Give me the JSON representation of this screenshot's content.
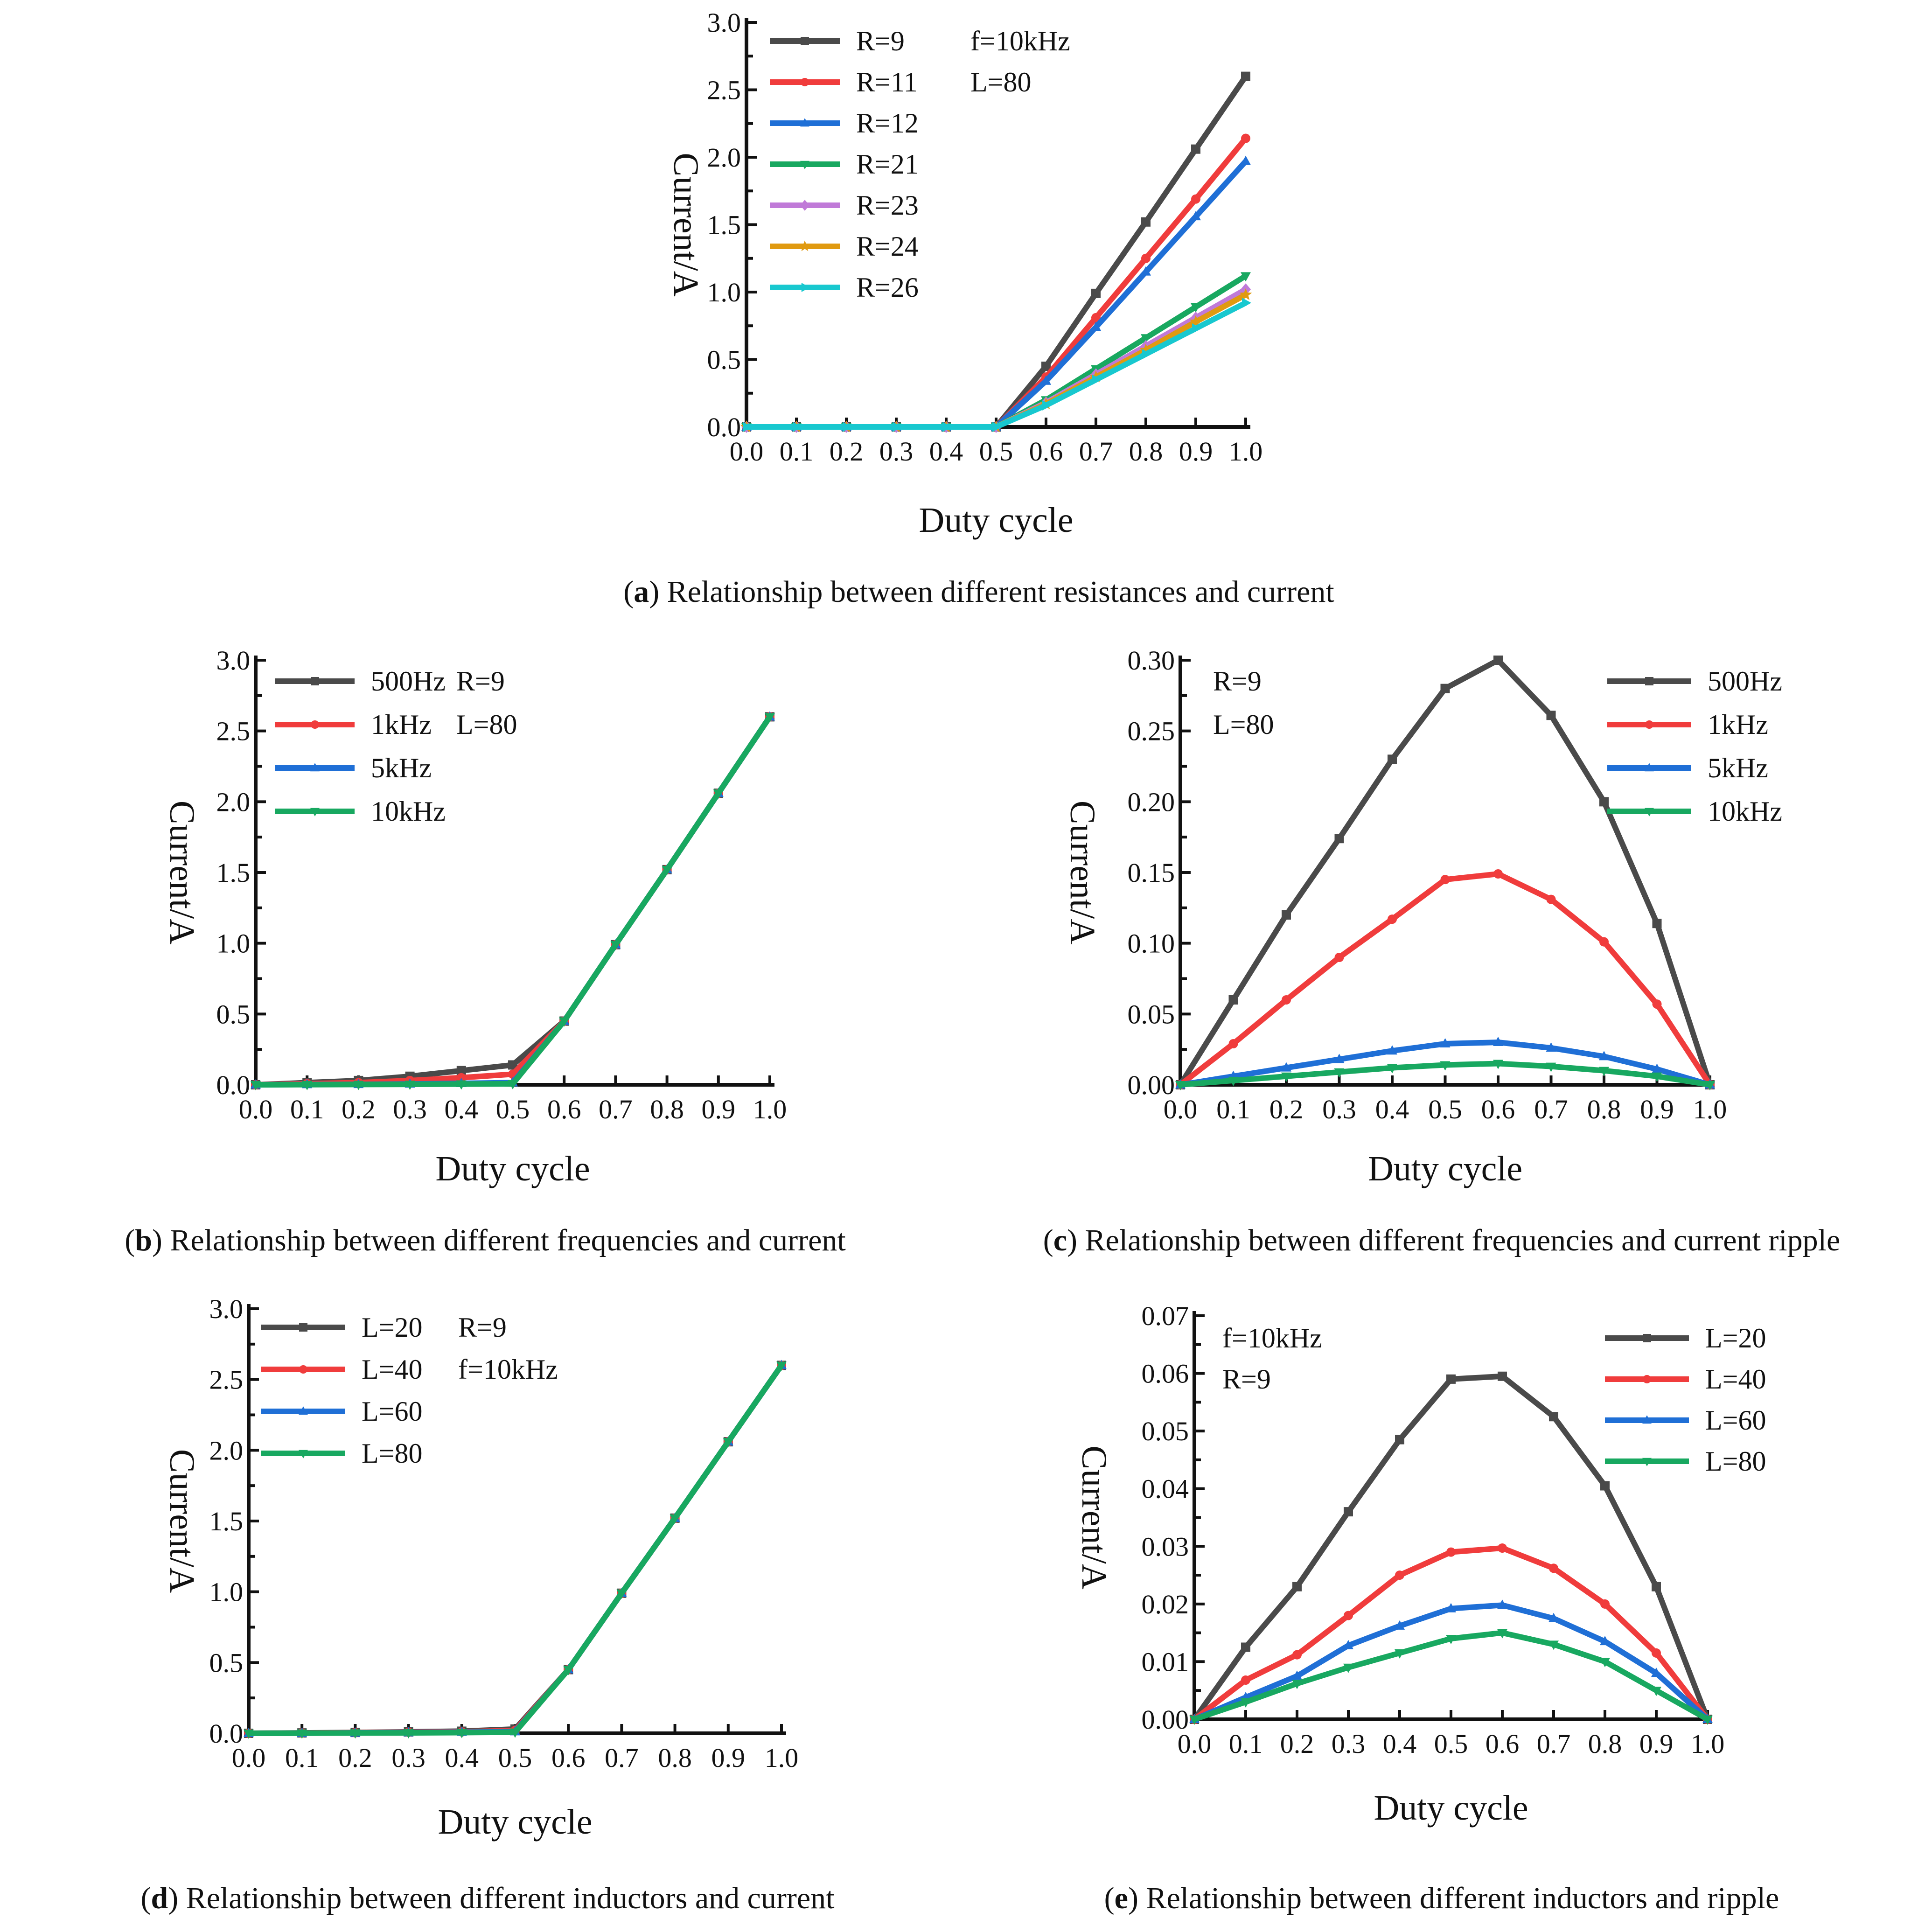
{
  "chart_data": [
    {
      "id": "a",
      "type": "line",
      "title": "",
      "xlabel": "Duty cycle",
      "ylabel": "Current/A",
      "xlim": [
        0,
        1.0
      ],
      "ylim": [
        0,
        3.0
      ],
      "x_ticks": [
        "0.0",
        "0.1",
        "0.2",
        "0.3",
        "0.4",
        "0.5",
        "0.6",
        "0.7",
        "0.8",
        "0.9",
        "1.0"
      ],
      "y_ticks": [
        "0.0",
        "0.5",
        "1.0",
        "1.5",
        "2.0",
        "2.5",
        "3.0"
      ],
      "x": [
        0,
        0.1,
        0.2,
        0.3,
        0.4,
        0.5,
        0.6,
        0.7,
        0.8,
        0.9,
        1.0
      ],
      "legend": "top-left",
      "notes": [
        "f=10kHz",
        "L=80"
      ],
      "caption_label": "a",
      "caption_text": "Relationship between different resistances and current",
      "series": [
        {
          "name": "R=9",
          "color": "#4a4a4a",
          "marker": "square",
          "values": [
            0,
            0,
            0,
            0,
            0,
            0,
            0.45,
            0.99,
            1.52,
            2.06,
            2.6
          ]
        },
        {
          "name": "R=11",
          "color": "#f03c3c",
          "marker": "circle",
          "values": [
            0,
            0,
            0,
            0,
            0,
            0,
            0.37,
            0.81,
            1.25,
            1.69,
            2.14
          ]
        },
        {
          "name": "R=12",
          "color": "#1f6fd6",
          "marker": "triangle",
          "values": [
            0,
            0,
            0,
            0,
            0,
            0,
            0.34,
            0.74,
            1.15,
            1.56,
            1.97
          ]
        },
        {
          "name": "R=21",
          "color": "#18a860",
          "marker": "tri-down",
          "values": [
            0,
            0,
            0,
            0,
            0,
            0,
            0.2,
            0.43,
            0.66,
            0.89,
            1.12
          ]
        },
        {
          "name": "R=23",
          "color": "#c07ad8",
          "marker": "diamond",
          "values": [
            0,
            0,
            0,
            0,
            0,
            0,
            0.18,
            0.39,
            0.6,
            0.81,
            1.02
          ]
        },
        {
          "name": "R=24",
          "color": "#e09a10",
          "marker": "star",
          "values": [
            0,
            0,
            0,
            0,
            0,
            0,
            0.17,
            0.37,
            0.57,
            0.78,
            0.98
          ]
        },
        {
          "name": "R=26",
          "color": "#18c8cf",
          "marker": "tri-right",
          "values": [
            0,
            0,
            0,
            0,
            0,
            0,
            0.16,
            0.35,
            0.54,
            0.73,
            0.92
          ]
        }
      ]
    },
    {
      "id": "b",
      "type": "line",
      "title": "",
      "xlabel": "Duty cycle",
      "ylabel": "Current/A",
      "xlim": [
        0,
        1.0
      ],
      "ylim": [
        0,
        3.0
      ],
      "x_ticks": [
        "0.0",
        "0.1",
        "0.2",
        "0.3",
        "0.4",
        "0.5",
        "0.6",
        "0.7",
        "0.8",
        "0.9",
        "1.0"
      ],
      "y_ticks": [
        "0.0",
        "0.5",
        "1.0",
        "1.5",
        "2.0",
        "2.5",
        "3.0"
      ],
      "x": [
        0,
        0.1,
        0.2,
        0.3,
        0.4,
        0.5,
        0.6,
        0.7,
        0.8,
        0.9,
        1.0
      ],
      "legend": "top-left",
      "notes": [
        "R=9",
        "L=80"
      ],
      "caption_label": "b",
      "caption_text": "Relationship between different frequencies and current",
      "series": [
        {
          "name": "500Hz",
          "color": "#4a4a4a",
          "marker": "square",
          "values": [
            0,
            0.015,
            0.03,
            0.06,
            0.1,
            0.14,
            0.45,
            0.99,
            1.52,
            2.06,
            2.6
          ]
        },
        {
          "name": "1kHz",
          "color": "#f03c3c",
          "marker": "circle",
          "values": [
            0,
            0.008,
            0.015,
            0.03,
            0.05,
            0.075,
            0.45,
            0.99,
            1.52,
            2.06,
            2.6
          ]
        },
        {
          "name": "5kHz",
          "color": "#1f6fd6",
          "marker": "triangle",
          "values": [
            0,
            0.002,
            0.003,
            0.006,
            0.01,
            0.015,
            0.45,
            0.99,
            1.52,
            2.06,
            2.6
          ]
        },
        {
          "name": "10kHz",
          "color": "#18a860",
          "marker": "tri-down",
          "values": [
            0,
            0.001,
            0.002,
            0.003,
            0.005,
            0.007,
            0.45,
            0.99,
            1.52,
            2.06,
            2.6
          ]
        }
      ]
    },
    {
      "id": "c",
      "type": "line",
      "title": "",
      "xlabel": "Duty cycle",
      "ylabel": "Current/A",
      "xlim": [
        0,
        1.0
      ],
      "ylim": [
        0,
        0.3
      ],
      "x_ticks": [
        "0.0",
        "0.1",
        "0.2",
        "0.3",
        "0.4",
        "0.5",
        "0.6",
        "0.7",
        "0.8",
        "0.9",
        "1.0"
      ],
      "y_ticks": [
        "0.00",
        "0.05",
        "0.10",
        "0.15",
        "0.20",
        "0.25",
        "0.30"
      ],
      "x": [
        0,
        0.1,
        0.2,
        0.3,
        0.4,
        0.5,
        0.6,
        0.7,
        0.8,
        0.9,
        1.0
      ],
      "legend": "top-right",
      "notes": [
        "R=9",
        "L=80"
      ],
      "caption_label": "c",
      "caption_text": "Relationship between different frequencies and current ripple",
      "series": [
        {
          "name": "500Hz",
          "color": "#4a4a4a",
          "marker": "square",
          "values": [
            0,
            0.06,
            0.12,
            0.174,
            0.23,
            0.28,
            0.3,
            0.261,
            0.2,
            0.114,
            0
          ]
        },
        {
          "name": "1kHz",
          "color": "#f03c3c",
          "marker": "circle",
          "values": [
            0,
            0.029,
            0.06,
            0.09,
            0.117,
            0.145,
            0.149,
            0.131,
            0.101,
            0.057,
            0
          ]
        },
        {
          "name": "5kHz",
          "color": "#1f6fd6",
          "marker": "triangle",
          "values": [
            0,
            0.006,
            0.012,
            0.018,
            0.024,
            0.029,
            0.03,
            0.026,
            0.02,
            0.011,
            0
          ]
        },
        {
          "name": "10kHz",
          "color": "#18a860",
          "marker": "tri-down",
          "values": [
            0,
            0.003,
            0.006,
            0.009,
            0.012,
            0.014,
            0.015,
            0.013,
            0.01,
            0.006,
            0
          ]
        }
      ]
    },
    {
      "id": "d",
      "type": "line",
      "title": "",
      "xlabel": "Duty cycle",
      "ylabel": "Current/A",
      "xlim": [
        0,
        1.0
      ],
      "ylim": [
        0,
        3.0
      ],
      "x_ticks": [
        "0.0",
        "0.1",
        "0.2",
        "0.3",
        "0.4",
        "0.5",
        "0.6",
        "0.7",
        "0.8",
        "0.9",
        "1.0"
      ],
      "y_ticks": [
        "0.0",
        "0.5",
        "1.0",
        "1.5",
        "2.0",
        "2.5",
        "3.0"
      ],
      "x": [
        0,
        0.1,
        0.2,
        0.3,
        0.4,
        0.5,
        0.6,
        0.7,
        0.8,
        0.9,
        1.0
      ],
      "legend": "top-left",
      "notes": [
        "R=9",
        "f=10kHz"
      ],
      "caption_label": "d",
      "caption_text": "Relationship between different inductors and current",
      "series": [
        {
          "name": "L=20",
          "color": "#4a4a4a",
          "marker": "square",
          "values": [
            0,
            0.003,
            0.006,
            0.01,
            0.015,
            0.03,
            0.45,
            0.99,
            1.52,
            2.06,
            2.6
          ]
        },
        {
          "name": "L=40",
          "color": "#f03c3c",
          "marker": "circle",
          "values": [
            0,
            0.002,
            0.004,
            0.007,
            0.01,
            0.02,
            0.45,
            0.99,
            1.52,
            2.06,
            2.6
          ]
        },
        {
          "name": "L=60",
          "color": "#1f6fd6",
          "marker": "triangle",
          "values": [
            0,
            0.001,
            0.003,
            0.005,
            0.008,
            0.012,
            0.45,
            0.99,
            1.52,
            2.06,
            2.6
          ]
        },
        {
          "name": "L=80",
          "color": "#18a860",
          "marker": "tri-down",
          "values": [
            0,
            0.001,
            0.002,
            0.003,
            0.005,
            0.008,
            0.45,
            0.99,
            1.52,
            2.06,
            2.6
          ]
        }
      ]
    },
    {
      "id": "e",
      "type": "line",
      "title": "",
      "xlabel": "Duty cycle",
      "ylabel": "Current/A",
      "xlim": [
        0,
        1.0
      ],
      "ylim": [
        0,
        0.07
      ],
      "x_ticks": [
        "0.0",
        "0.1",
        "0.2",
        "0.3",
        "0.4",
        "0.5",
        "0.6",
        "0.7",
        "0.8",
        "0.9",
        "1.0"
      ],
      "y_ticks": [
        "0.00",
        "0.01",
        "0.02",
        "0.03",
        "0.04",
        "0.05",
        "0.06",
        "0.07"
      ],
      "x": [
        0,
        0.1,
        0.2,
        0.3,
        0.4,
        0.5,
        0.6,
        0.7,
        0.8,
        0.9,
        1.0
      ],
      "legend": "top-right",
      "notes": [
        "f=10kHz",
        "R=9"
      ],
      "caption_label": "e",
      "caption_text": "Relationship between different inductors and ripple",
      "series": [
        {
          "name": "L=20",
          "color": "#4a4a4a",
          "marker": "square",
          "values": [
            0,
            0.0125,
            0.023,
            0.036,
            0.0485,
            0.059,
            0.0595,
            0.0525,
            0.0405,
            0.023,
            0
          ]
        },
        {
          "name": "L=40",
          "color": "#f03c3c",
          "marker": "circle",
          "values": [
            0,
            0.0068,
            0.0112,
            0.018,
            0.025,
            0.029,
            0.0297,
            0.0262,
            0.02,
            0.0115,
            0
          ]
        },
        {
          "name": "L=60",
          "color": "#1f6fd6",
          "marker": "triangle",
          "values": [
            0,
            0.0038,
            0.0075,
            0.0128,
            0.0162,
            0.0192,
            0.0198,
            0.0175,
            0.0135,
            0.008,
            0
          ]
        },
        {
          "name": "L=80",
          "color": "#18a860",
          "marker": "tri-down",
          "values": [
            0,
            0.003,
            0.0062,
            0.009,
            0.0115,
            0.014,
            0.015,
            0.013,
            0.01,
            0.005,
            0
          ]
        }
      ]
    }
  ]
}
